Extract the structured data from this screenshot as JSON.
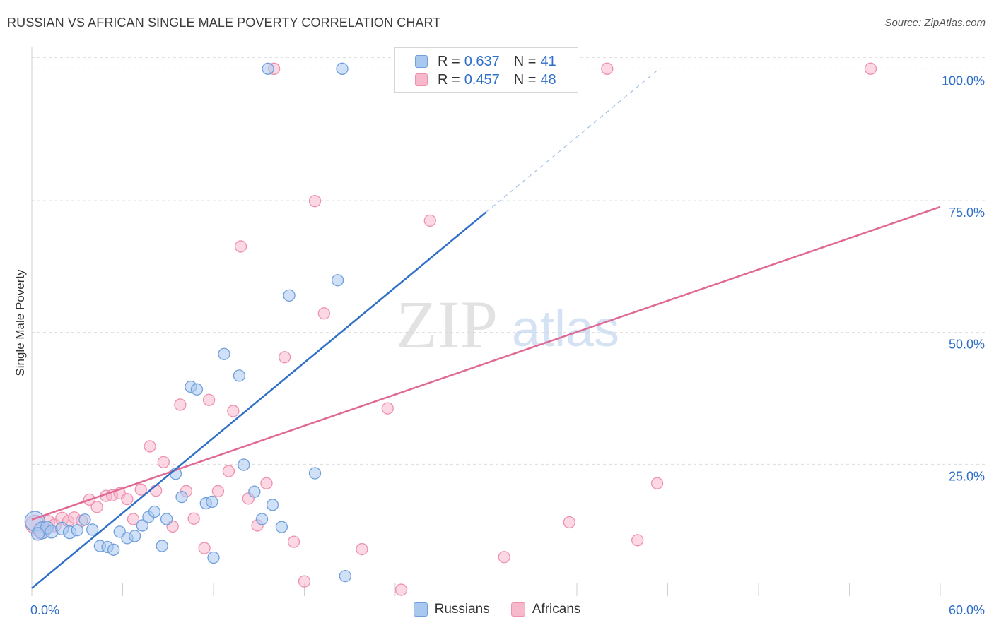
{
  "title": "RUSSIAN VS AFRICAN SINGLE MALE POVERTY CORRELATION CHART",
  "source": "Source: ZipAtlas.com",
  "watermark": {
    "zip": "ZIP",
    "atlas": "atlas"
  },
  "legend": {
    "r_label": "R =",
    "n_label": "N =",
    "series": [
      {
        "name": "Russians",
        "r": "0.637",
        "n": "41"
      },
      {
        "name": "Africans",
        "r": "0.457",
        "n": "48"
      }
    ]
  },
  "colors": {
    "russians_fill": "#a9c8f0",
    "russians_stroke": "#6f9fdc",
    "russians_line": "#2f6fc8",
    "africans_fill": "#f7b8cc",
    "africans_stroke": "#ee91ad",
    "africans_line": "#e06894",
    "value_text": "#2f6fc8",
    "grid": "#dcdcdc"
  },
  "chart_data": {
    "type": "scatter",
    "title": "RUSSIAN VS AFRICAN SINGLE MALE POVERTY CORRELATION CHART",
    "xlabel": "",
    "ylabel": "Single Male Poverty",
    "xlim": [
      0,
      60
    ],
    "ylim": [
      0,
      105
    ],
    "x_tick_labels": [
      {
        "value": 0,
        "label": "0.0%"
      },
      {
        "value": 60,
        "label": "60.0%"
      }
    ],
    "y_tick_labels": [
      {
        "value": 25,
        "label": "25.0%"
      },
      {
        "value": 50,
        "label": "50.0%"
      },
      {
        "value": 75,
        "label": "75.0%"
      },
      {
        "value": 100,
        "label": "100.0%"
      }
    ],
    "x_minor_ticks": [
      6,
      12,
      18,
      24,
      30,
      36,
      42,
      48,
      54,
      60
    ],
    "grid": "horizontal dashed",
    "legend_position": "top-center",
    "series": [
      {
        "name": "Russians",
        "r": 0.637,
        "n": 41,
        "trend": {
          "x0": 0,
          "y0": 1.5,
          "x1": 30,
          "y1": 72.8,
          "dash_to_x": 41.5
        },
        "points": [
          {
            "x": 0.2,
            "y": 14.2,
            "s": 14
          },
          {
            "x": 0.7,
            "y": 12.5,
            "s": 12
          },
          {
            "x": 1.0,
            "y": 13.0,
            "s": 9
          },
          {
            "x": 1.3,
            "y": 12.2,
            "s": 9
          },
          {
            "x": 2.0,
            "y": 12.8,
            "s": 9
          },
          {
            "x": 2.5,
            "y": 12.1,
            "s": 9
          },
          {
            "x": 3.0,
            "y": 12.5,
            "s": 8
          },
          {
            "x": 3.5,
            "y": 14.5,
            "s": 8
          },
          {
            "x": 4.0,
            "y": 12.6,
            "s": 8
          },
          {
            "x": 4.5,
            "y": 9.5,
            "s": 8
          },
          {
            "x": 5.0,
            "y": 9.3,
            "s": 8
          },
          {
            "x": 5.4,
            "y": 8.8,
            "s": 8
          },
          {
            "x": 5.8,
            "y": 12.2,
            "s": 8
          },
          {
            "x": 6.3,
            "y": 11.0,
            "s": 8
          },
          {
            "x": 6.8,
            "y": 11.4,
            "s": 8
          },
          {
            "x": 7.3,
            "y": 13.4,
            "s": 8
          },
          {
            "x": 7.7,
            "y": 15.0,
            "s": 8
          },
          {
            "x": 8.1,
            "y": 16.0,
            "s": 8
          },
          {
            "x": 8.6,
            "y": 9.5,
            "s": 8
          },
          {
            "x": 8.9,
            "y": 14.6,
            "s": 8
          },
          {
            "x": 9.5,
            "y": 23.2,
            "s": 8
          },
          {
            "x": 9.9,
            "y": 18.8,
            "s": 8
          },
          {
            "x": 10.5,
            "y": 39.7,
            "s": 8
          },
          {
            "x": 10.9,
            "y": 39.2,
            "s": 8
          },
          {
            "x": 11.5,
            "y": 17.6,
            "s": 8
          },
          {
            "x": 11.9,
            "y": 17.9,
            "s": 8
          },
          {
            "x": 12.0,
            "y": 7.3,
            "s": 8
          },
          {
            "x": 12.7,
            "y": 45.9,
            "s": 8
          },
          {
            "x": 13.7,
            "y": 41.8,
            "s": 8
          },
          {
            "x": 14.0,
            "y": 24.9,
            "s": 8
          },
          {
            "x": 14.7,
            "y": 19.8,
            "s": 8
          },
          {
            "x": 15.2,
            "y": 14.6,
            "s": 8
          },
          {
            "x": 15.6,
            "y": 100.0,
            "s": 8
          },
          {
            "x": 15.9,
            "y": 17.3,
            "s": 8
          },
          {
            "x": 16.5,
            "y": 13.1,
            "s": 8
          },
          {
            "x": 17.0,
            "y": 57.0,
            "s": 8
          },
          {
            "x": 18.7,
            "y": 23.3,
            "s": 8
          },
          {
            "x": 20.2,
            "y": 59.9,
            "s": 8
          },
          {
            "x": 20.5,
            "y": 100.0,
            "s": 8
          },
          {
            "x": 20.7,
            "y": 3.8,
            "s": 8
          },
          {
            "x": 0.4,
            "y": 11.8,
            "s": 9
          }
        ]
      },
      {
        "name": "Africans",
        "r": 0.457,
        "n": 48,
        "trend": {
          "x0": 0,
          "y0": 14.5,
          "x1": 60,
          "y1": 73.8
        },
        "points": [
          {
            "x": 0.2,
            "y": 13.6,
            "s": 13
          },
          {
            "x": 0.6,
            "y": 12.3,
            "s": 11
          },
          {
            "x": 1.1,
            "y": 14.1,
            "s": 9
          },
          {
            "x": 1.5,
            "y": 13.4,
            "s": 9
          },
          {
            "x": 2.0,
            "y": 14.7,
            "s": 9
          },
          {
            "x": 2.4,
            "y": 14.2,
            "s": 8
          },
          {
            "x": 2.8,
            "y": 14.9,
            "s": 8
          },
          {
            "x": 3.3,
            "y": 14.3,
            "s": 8
          },
          {
            "x": 3.8,
            "y": 18.3,
            "s": 8
          },
          {
            "x": 4.3,
            "y": 16.9,
            "s": 8
          },
          {
            "x": 4.9,
            "y": 19.0,
            "s": 8
          },
          {
            "x": 5.3,
            "y": 19.1,
            "s": 8
          },
          {
            "x": 5.8,
            "y": 19.5,
            "s": 8
          },
          {
            "x": 6.3,
            "y": 18.4,
            "s": 8
          },
          {
            "x": 6.7,
            "y": 14.6,
            "s": 8
          },
          {
            "x": 7.2,
            "y": 20.2,
            "s": 8
          },
          {
            "x": 7.8,
            "y": 28.4,
            "s": 8
          },
          {
            "x": 8.2,
            "y": 20.0,
            "s": 8
          },
          {
            "x": 8.7,
            "y": 25.4,
            "s": 8
          },
          {
            "x": 9.3,
            "y": 13.2,
            "s": 8
          },
          {
            "x": 9.8,
            "y": 36.3,
            "s": 8
          },
          {
            "x": 10.2,
            "y": 19.9,
            "s": 8
          },
          {
            "x": 10.7,
            "y": 14.7,
            "s": 8
          },
          {
            "x": 11.4,
            "y": 9.1,
            "s": 8
          },
          {
            "x": 11.7,
            "y": 37.2,
            "s": 8
          },
          {
            "x": 12.3,
            "y": 19.9,
            "s": 8
          },
          {
            "x": 13.0,
            "y": 23.7,
            "s": 8
          },
          {
            "x": 13.3,
            "y": 35.1,
            "s": 8
          },
          {
            "x": 13.8,
            "y": 66.3,
            "s": 8
          },
          {
            "x": 14.3,
            "y": 18.5,
            "s": 8
          },
          {
            "x": 14.9,
            "y": 13.4,
            "s": 8
          },
          {
            "x": 15.5,
            "y": 21.4,
            "s": 8
          },
          {
            "x": 16.0,
            "y": 100.0,
            "s": 8
          },
          {
            "x": 16.7,
            "y": 45.3,
            "s": 8
          },
          {
            "x": 17.3,
            "y": 10.3,
            "s": 8
          },
          {
            "x": 18.0,
            "y": 2.8,
            "s": 8
          },
          {
            "x": 18.7,
            "y": 74.9,
            "s": 8
          },
          {
            "x": 19.3,
            "y": 53.6,
            "s": 8
          },
          {
            "x": 21.8,
            "y": 8.9,
            "s": 8
          },
          {
            "x": 23.5,
            "y": 35.6,
            "s": 8
          },
          {
            "x": 24.4,
            "y": 1.2,
            "s": 8
          },
          {
            "x": 26.3,
            "y": 71.2,
            "s": 8
          },
          {
            "x": 31.2,
            "y": 7.4,
            "s": 8
          },
          {
            "x": 35.5,
            "y": 14.0,
            "s": 8
          },
          {
            "x": 38.0,
            "y": 100.0,
            "s": 8
          },
          {
            "x": 40.0,
            "y": 10.6,
            "s": 8
          },
          {
            "x": 41.3,
            "y": 21.4,
            "s": 8
          },
          {
            "x": 55.4,
            "y": 100.0,
            "s": 8
          }
        ]
      }
    ]
  }
}
